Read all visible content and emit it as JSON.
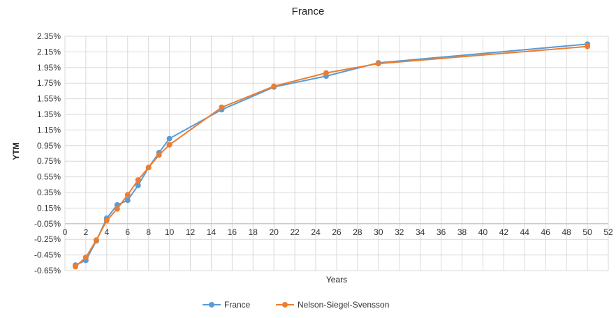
{
  "chart_data": {
    "type": "line",
    "title": "France",
    "xlabel": "Years",
    "ylabel": "YTM",
    "xlim": [
      0,
      52
    ],
    "ylim": [
      -0.65,
      2.35
    ],
    "x_ticks": [
      "0",
      "2",
      "4",
      "6",
      "8",
      "10",
      "12",
      "14",
      "16",
      "18",
      "20",
      "22",
      "24",
      "26",
      "28",
      "30",
      "32",
      "34",
      "36",
      "38",
      "40",
      "42",
      "44",
      "46",
      "48",
      "50",
      "52"
    ],
    "y_ticks": [
      "2.35%",
      "2.15%",
      "1.95%",
      "1.75%",
      "1.55%",
      "1.35%",
      "1.15%",
      "0.95%",
      "0.75%",
      "0.55%",
      "0.35%",
      "0.15%",
      "-0.05%",
      "-0.25%",
      "-0.45%",
      "-0.65%"
    ],
    "grid": true,
    "legend_position": "bottom",
    "series": [
      {
        "name": "France",
        "color": "#5B9BD5",
        "x": [
          1,
          2,
          3,
          4,
          5,
          6,
          7,
          8,
          9,
          10,
          15,
          20,
          25,
          30,
          50
        ],
        "y": [
          -0.58,
          -0.52,
          -0.27,
          0.02,
          0.19,
          0.25,
          0.44,
          0.67,
          0.86,
          1.04,
          1.41,
          1.7,
          1.84,
          2.01,
          2.25
        ]
      },
      {
        "name": "Nelson-Siegel-Svensson",
        "color": "#ED7D31",
        "x": [
          1,
          2,
          3,
          4,
          5,
          6,
          7,
          8,
          9,
          10,
          15,
          20,
          25,
          30,
          50
        ],
        "y": [
          -0.6,
          -0.48,
          -0.26,
          -0.01,
          0.14,
          0.32,
          0.51,
          0.67,
          0.83,
          0.96,
          1.44,
          1.71,
          1.88,
          2.0,
          2.22
        ]
      }
    ]
  }
}
